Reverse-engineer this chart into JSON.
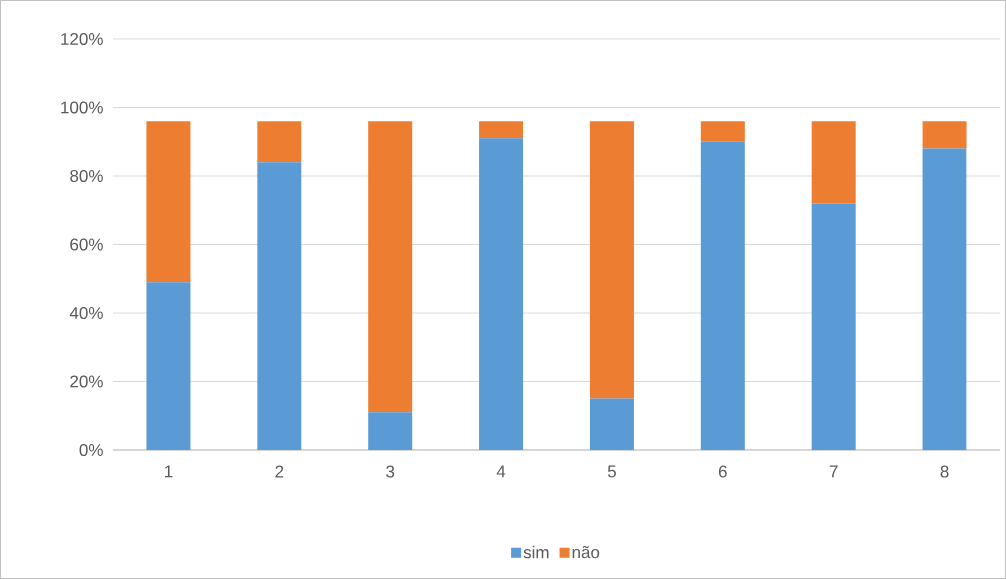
{
  "chart_data": {
    "type": "bar",
    "stacked": true,
    "categories": [
      "1",
      "2",
      "3",
      "4",
      "5",
      "6",
      "7",
      "8"
    ],
    "series": [
      {
        "name": "sim",
        "color": "#5b9bd5",
        "values": [
          49,
          84,
          11,
          91,
          15,
          90,
          72,
          88
        ]
      },
      {
        "name": "não",
        "color": "#ed7d31",
        "values": [
          47,
          12,
          85,
          5,
          81,
          6,
          24,
          8
        ]
      }
    ],
    "ylim": [
      0,
      120
    ],
    "yticks": [
      {
        "value": 0,
        "label": "0%"
      },
      {
        "value": 20,
        "label": "20%"
      },
      {
        "value": 40,
        "label": "40%"
      },
      {
        "value": 60,
        "label": "60%"
      },
      {
        "value": 80,
        "label": "80%"
      },
      {
        "value": 100,
        "label": "100%"
      },
      {
        "value": 120,
        "label": "120%"
      }
    ],
    "grid": "y",
    "legend": "bottom"
  }
}
